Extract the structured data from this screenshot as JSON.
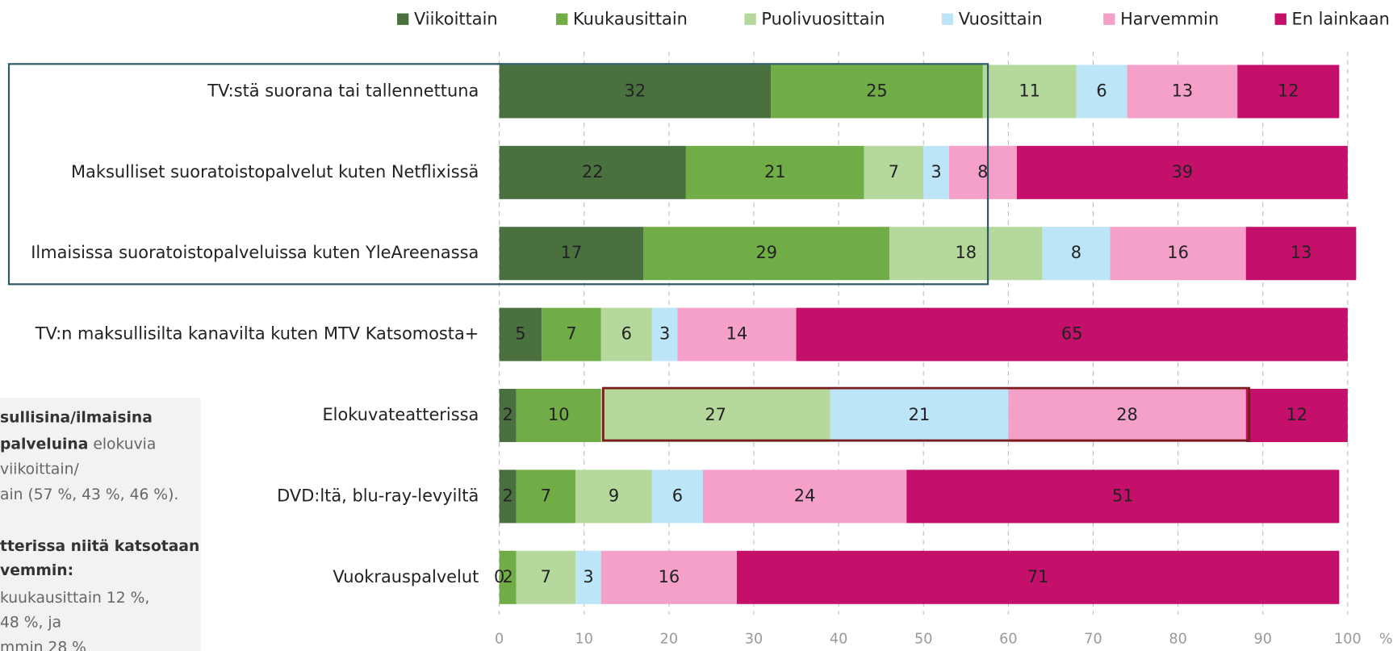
{
  "chart_data": {
    "type": "stacked_bar_horizontal",
    "categories": [
      "TV:stä suorana tai tallennettuna",
      "Maksulliset suoratoistopalvelut kuten Netflixissä",
      "Ilmaisissa suoratoistopalveluissa kuten YleAreenassa",
      "TV:n maksullisilta kanavilta kuten MTV Katsomosta+",
      "Elokuvateatterissa",
      "DVD:ltä, blu-ray-levyiltä",
      "Vuokrauspalvelut"
    ],
    "series": [
      {
        "name": "Viikoittain",
        "color": "#4a7040",
        "values": [
          32,
          22,
          17,
          5,
          2,
          2,
          0
        ]
      },
      {
        "name": "Kuukausittain",
        "color": "#70ad47",
        "values": [
          25,
          21,
          29,
          7,
          10,
          7,
          2
        ]
      },
      {
        "name": "Puolivuosittain",
        "color": "#b5d99c",
        "values": [
          11,
          7,
          18,
          6,
          27,
          9,
          7
        ]
      },
      {
        "name": "Vuosittain",
        "color": "#bde5f8",
        "values": [
          6,
          3,
          8,
          3,
          21,
          6,
          3
        ]
      },
      {
        "name": "Harvemmin",
        "color": "#f4a0c8",
        "values": [
          13,
          8,
          16,
          14,
          28,
          24,
          16
        ]
      },
      {
        "name": "En lainkaan",
        "color": "#c4106a",
        "values": [
          12,
          39,
          13,
          65,
          12,
          51,
          71
        ]
      }
    ],
    "xlim": [
      0,
      100
    ],
    "xticks": [
      0,
      10,
      20,
      30,
      40,
      50,
      60,
      70,
      80,
      90,
      100
    ],
    "xlabel": "%",
    "grid": true,
    "legend": "top",
    "annotations": [
      [
        {
          "text": "sullisina/ilmaisina",
          "bold": true
        }
      ],
      [
        {
          "text": "palveluina",
          "bold": true
        },
        {
          "text": " elokuvia",
          "bold": false
        }
      ],
      [
        {
          "text": "viikoittain/",
          "bold": false
        }
      ],
      [
        {
          "text": "ain (57 %, 43 %, 46 %).",
          "bold": false
        }
      ],
      [
        {
          "text": "tterissa niitä katsotaan",
          "bold": true
        }
      ],
      [
        {
          "text": "vemmin:",
          "bold": true
        }
      ],
      [
        {
          "text": "kuukausittain 12 %,",
          "bold": false
        }
      ],
      [
        {
          "text": "48 %, ja",
          "bold": false
        }
      ],
      [
        {
          "text": "mmin 28 %",
          "bold": false
        }
      ]
    ]
  }
}
